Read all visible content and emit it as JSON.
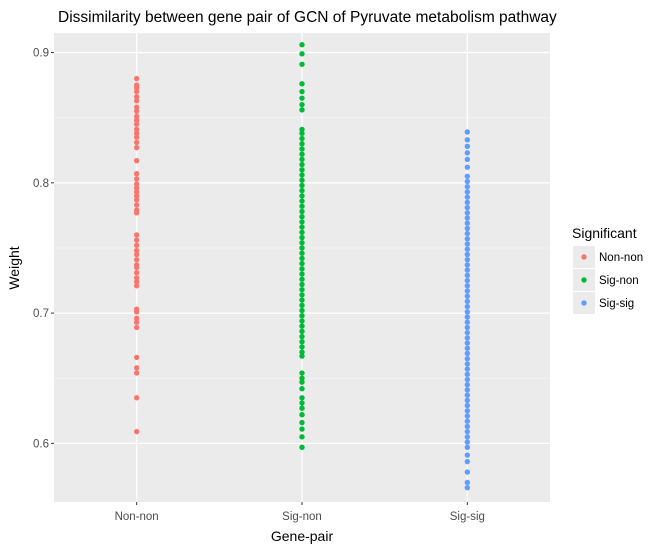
{
  "chart_data": {
    "type": "scatter",
    "title": "Dissimilarity between gene pair of GCN of Pyruvate metabolism pathway",
    "xlabel": "Gene-pair",
    "ylabel": "Weight",
    "categories": [
      "Non-non",
      "Sig-non",
      "Sig-sig"
    ],
    "ylim": [
      0.555,
      0.915
    ],
    "yticks": [
      0.6,
      0.7,
      0.8,
      0.9
    ],
    "ytick_labels": [
      "0.6",
      "0.7",
      "0.8",
      "0.9"
    ],
    "grid": true,
    "background": "#ebebeb",
    "legend": {
      "title": "Significant",
      "position": "right",
      "entries": [
        "Non-non",
        "Sig-non",
        "Sig-sig"
      ]
    },
    "series": [
      {
        "name": "Non-non",
        "color": "#f8766d",
        "category": "Non-non",
        "values": [
          0.609,
          0.635,
          0.654,
          0.658,
          0.666,
          0.689,
          0.693,
          0.696,
          0.701,
          0.703,
          0.721,
          0.724,
          0.727,
          0.731,
          0.735,
          0.737,
          0.741,
          0.745,
          0.748,
          0.752,
          0.756,
          0.76,
          0.777,
          0.779,
          0.783,
          0.787,
          0.79,
          0.793,
          0.796,
          0.799,
          0.803,
          0.807,
          0.817,
          0.827,
          0.831,
          0.835,
          0.838,
          0.841,
          0.845,
          0.848,
          0.851,
          0.855,
          0.858,
          0.863,
          0.866,
          0.87,
          0.873,
          0.875,
          0.88
        ]
      },
      {
        "name": "Sig-non",
        "color": "#00ba38",
        "category": "Sig-non",
        "values": [
          0.597,
          0.605,
          0.611,
          0.616,
          0.622,
          0.627,
          0.631,
          0.635,
          0.642,
          0.647,
          0.65,
          0.654,
          0.667,
          0.67,
          0.674,
          0.678,
          0.682,
          0.686,
          0.69,
          0.694,
          0.698,
          0.702,
          0.706,
          0.71,
          0.714,
          0.718,
          0.722,
          0.726,
          0.73,
          0.734,
          0.738,
          0.742,
          0.746,
          0.75,
          0.754,
          0.758,
          0.762,
          0.766,
          0.77,
          0.774,
          0.778,
          0.782,
          0.786,
          0.79,
          0.794,
          0.798,
          0.802,
          0.806,
          0.81,
          0.814,
          0.818,
          0.822,
          0.826,
          0.83,
          0.834,
          0.838,
          0.841,
          0.856,
          0.86,
          0.865,
          0.87,
          0.876,
          0.891,
          0.899,
          0.906
        ]
      },
      {
        "name": "Sig-sig",
        "color": "#619cff",
        "category": "Sig-sig",
        "values": [
          0.566,
          0.57,
          0.578,
          0.586,
          0.591,
          0.597,
          0.601,
          0.605,
          0.609,
          0.613,
          0.617,
          0.621,
          0.625,
          0.629,
          0.633,
          0.637,
          0.641,
          0.645,
          0.649,
          0.653,
          0.657,
          0.661,
          0.665,
          0.669,
          0.673,
          0.677,
          0.681,
          0.685,
          0.689,
          0.693,
          0.697,
          0.701,
          0.705,
          0.709,
          0.713,
          0.717,
          0.721,
          0.725,
          0.729,
          0.733,
          0.737,
          0.741,
          0.745,
          0.749,
          0.753,
          0.757,
          0.761,
          0.765,
          0.769,
          0.773,
          0.777,
          0.781,
          0.785,
          0.789,
          0.793,
          0.797,
          0.801,
          0.805,
          0.812,
          0.818,
          0.823,
          0.828,
          0.833,
          0.839
        ]
      }
    ]
  }
}
